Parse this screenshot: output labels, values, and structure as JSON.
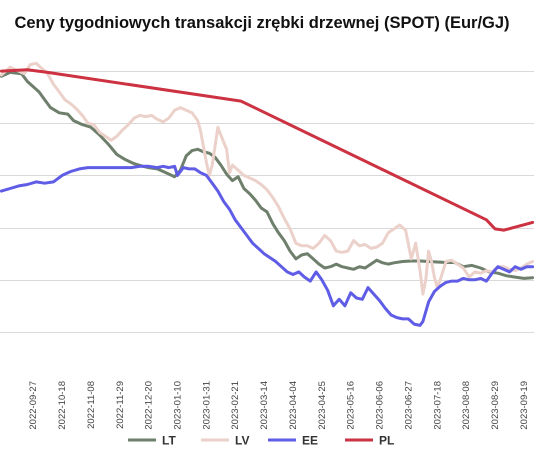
{
  "chart_data": {
    "type": "line",
    "title": "Ceny tygodniowych transakcji zrębki drzewnej (SPOT) (Eur/GJ)",
    "xlabel": "",
    "ylabel": "",
    "grid": true,
    "legend_position": "bottom",
    "x_tick_labels": [
      "2022-09-27",
      "2022-10-18",
      "2022-11-08",
      "2022-11-29",
      "2022-12-20",
      "2023-01-10",
      "2023-01-31",
      "2023-02-21",
      "2023-03-14",
      "2023-04-04",
      "2023-04-25",
      "2023-05-16",
      "2023-06-06",
      "2023-06-27",
      "2023-07-18",
      "2023-08-08",
      "2023-08-29",
      "2023-09-19"
    ],
    "series": [
      {
        "name": "LT",
        "color": "#6e7f6c",
        "points": [
          [
            -1.1,
            10.8
          ],
          [
            -0.8,
            10.95
          ],
          [
            -0.4,
            10.9
          ],
          [
            -0.2,
            10.6
          ],
          [
            0.2,
            10.2
          ],
          [
            0.4,
            9.9
          ],
          [
            0.6,
            9.6
          ],
          [
            0.9,
            9.4
          ],
          [
            1.2,
            9.35
          ],
          [
            1.4,
            9.1
          ],
          [
            1.7,
            8.95
          ],
          [
            2.0,
            8.85
          ],
          [
            2.3,
            8.55
          ],
          [
            2.6,
            8.2
          ],
          [
            2.9,
            7.8
          ],
          [
            3.2,
            7.6
          ],
          [
            3.5,
            7.45
          ],
          [
            3.8,
            7.35
          ],
          [
            4.0,
            7.3
          ],
          [
            4.3,
            7.25
          ],
          [
            4.6,
            7.1
          ],
          [
            4.9,
            6.95
          ],
          [
            5.1,
            7.2
          ],
          [
            5.3,
            7.75
          ],
          [
            5.5,
            7.95
          ],
          [
            5.7,
            8.0
          ],
          [
            5.9,
            7.9
          ],
          [
            6.1,
            7.85
          ],
          [
            6.3,
            7.7
          ],
          [
            6.5,
            7.4
          ],
          [
            6.7,
            7.05
          ],
          [
            6.9,
            6.8
          ],
          [
            7.1,
            6.95
          ],
          [
            7.3,
            6.5
          ],
          [
            7.5,
            6.3
          ],
          [
            7.7,
            6.05
          ],
          [
            7.9,
            5.75
          ],
          [
            8.1,
            5.6
          ],
          [
            8.3,
            5.15
          ],
          [
            8.5,
            4.8
          ],
          [
            8.7,
            4.5
          ],
          [
            8.9,
            4.1
          ],
          [
            9.1,
            3.8
          ],
          [
            9.3,
            3.95
          ],
          [
            9.5,
            4.0
          ],
          [
            9.7,
            3.8
          ],
          [
            9.9,
            3.6
          ],
          [
            10.1,
            3.45
          ],
          [
            10.3,
            3.5
          ],
          [
            10.5,
            3.6
          ],
          [
            10.7,
            3.5
          ],
          [
            10.9,
            3.45
          ],
          [
            11.1,
            3.4
          ],
          [
            11.3,
            3.5
          ],
          [
            11.5,
            3.45
          ],
          [
            11.7,
            3.6
          ],
          [
            11.9,
            3.75
          ],
          [
            12.1,
            3.65
          ],
          [
            12.3,
            3.6
          ],
          [
            12.5,
            3.65
          ],
          [
            12.8,
            3.7
          ],
          [
            13.1,
            3.72
          ],
          [
            13.4,
            3.72
          ],
          [
            13.7,
            3.7
          ],
          [
            14.0,
            3.68
          ],
          [
            14.3,
            3.66
          ],
          [
            14.6,
            3.66
          ],
          [
            14.9,
            3.5
          ],
          [
            15.2,
            3.55
          ],
          [
            15.5,
            3.45
          ],
          [
            15.8,
            3.3
          ],
          [
            16.1,
            3.25
          ],
          [
            16.4,
            3.15
          ],
          [
            16.7,
            3.1
          ],
          [
            17.0,
            3.05
          ],
          [
            17.3,
            3.08
          ]
        ]
      },
      {
        "name": "LV",
        "color": "#ebd1ca",
        "points": [
          [
            -1.1,
            10.85
          ],
          [
            -0.8,
            11.15
          ],
          [
            -0.5,
            11.0
          ],
          [
            -0.3,
            10.9
          ],
          [
            -0.1,
            11.25
          ],
          [
            0.1,
            11.3
          ],
          [
            0.3,
            11.1
          ],
          [
            0.5,
            10.9
          ],
          [
            0.7,
            10.5
          ],
          [
            0.9,
            10.2
          ],
          [
            1.1,
            9.9
          ],
          [
            1.3,
            9.75
          ],
          [
            1.5,
            9.55
          ],
          [
            1.7,
            9.3
          ],
          [
            1.9,
            9.0
          ],
          [
            2.1,
            8.95
          ],
          [
            2.3,
            8.65
          ],
          [
            2.5,
            8.5
          ],
          [
            2.7,
            8.35
          ],
          [
            2.9,
            8.5
          ],
          [
            3.1,
            8.75
          ],
          [
            3.3,
            8.95
          ],
          [
            3.5,
            9.2
          ],
          [
            3.7,
            9.3
          ],
          [
            3.9,
            9.25
          ],
          [
            4.1,
            9.3
          ],
          [
            4.3,
            9.15
          ],
          [
            4.5,
            9.05
          ],
          [
            4.7,
            9.2
          ],
          [
            4.9,
            9.5
          ],
          [
            5.1,
            9.6
          ],
          [
            5.3,
            9.5
          ],
          [
            5.5,
            9.4
          ],
          [
            5.7,
            9.1
          ],
          [
            5.8,
            8.7
          ],
          [
            5.9,
            8.1
          ],
          [
            6.0,
            7.5
          ],
          [
            6.1,
            7.0
          ],
          [
            6.2,
            7.4
          ],
          [
            6.3,
            8.1
          ],
          [
            6.4,
            8.85
          ],
          [
            6.5,
            8.55
          ],
          [
            6.7,
            8.0
          ],
          [
            6.8,
            7.1
          ],
          [
            6.9,
            7.4
          ],
          [
            7.1,
            7.2
          ],
          [
            7.3,
            7.0
          ],
          [
            7.5,
            6.9
          ],
          [
            7.7,
            6.8
          ],
          [
            7.9,
            6.65
          ],
          [
            8.1,
            6.45
          ],
          [
            8.3,
            6.15
          ],
          [
            8.5,
            5.8
          ],
          [
            8.7,
            5.35
          ],
          [
            8.9,
            4.95
          ],
          [
            9.1,
            4.4
          ],
          [
            9.3,
            4.3
          ],
          [
            9.5,
            4.3
          ],
          [
            9.7,
            4.2
          ],
          [
            9.9,
            4.4
          ],
          [
            10.1,
            4.7
          ],
          [
            10.3,
            4.5
          ],
          [
            10.5,
            4.1
          ],
          [
            10.7,
            4.05
          ],
          [
            10.9,
            4.1
          ],
          [
            11.1,
            4.5
          ],
          [
            11.3,
            4.3
          ],
          [
            11.5,
            4.35
          ],
          [
            11.7,
            4.2
          ],
          [
            11.9,
            4.25
          ],
          [
            12.1,
            4.4
          ],
          [
            12.3,
            4.8
          ],
          [
            12.5,
            4.95
          ],
          [
            12.7,
            5.1
          ],
          [
            12.9,
            4.9
          ],
          [
            13.1,
            3.8
          ],
          [
            13.25,
            4.4
          ],
          [
            13.4,
            3.35
          ],
          [
            13.5,
            2.45
          ],
          [
            13.6,
            3.0
          ],
          [
            13.7,
            4.1
          ],
          [
            13.8,
            3.7
          ],
          [
            13.9,
            3.1
          ],
          [
            14.0,
            2.7
          ],
          [
            14.1,
            3.0
          ],
          [
            14.3,
            3.7
          ],
          [
            14.5,
            3.75
          ],
          [
            14.7,
            3.6
          ],
          [
            14.9,
            3.45
          ],
          [
            15.1,
            3.1
          ],
          [
            15.3,
            3.3
          ],
          [
            15.5,
            3.25
          ],
          [
            15.7,
            3.35
          ],
          [
            15.9,
            3.3
          ],
          [
            16.1,
            3.5
          ],
          [
            16.3,
            3.5
          ],
          [
            16.5,
            3.4
          ],
          [
            16.7,
            3.35
          ],
          [
            16.9,
            3.45
          ],
          [
            17.1,
            3.6
          ],
          [
            17.3,
            3.7
          ]
        ]
      },
      {
        "name": "EE",
        "color": "#5f5ce6",
        "points": [
          [
            -1.1,
            6.4
          ],
          [
            -0.8,
            6.5
          ],
          [
            -0.5,
            6.6
          ],
          [
            -0.2,
            6.65
          ],
          [
            0.1,
            6.75
          ],
          [
            0.4,
            6.7
          ],
          [
            0.7,
            6.75
          ],
          [
            1.0,
            7.0
          ],
          [
            1.3,
            7.15
          ],
          [
            1.6,
            7.25
          ],
          [
            1.9,
            7.3
          ],
          [
            2.2,
            7.3
          ],
          [
            2.5,
            7.3
          ],
          [
            2.8,
            7.3
          ],
          [
            3.1,
            7.3
          ],
          [
            3.4,
            7.3
          ],
          [
            3.7,
            7.35
          ],
          [
            4.0,
            7.35
          ],
          [
            4.3,
            7.3
          ],
          [
            4.5,
            7.35
          ],
          [
            4.7,
            7.3
          ],
          [
            4.9,
            7.35
          ],
          [
            5.0,
            7.0
          ],
          [
            5.2,
            7.3
          ],
          [
            5.4,
            7.25
          ],
          [
            5.6,
            7.25
          ],
          [
            5.8,
            7.1
          ],
          [
            6.0,
            7.0
          ],
          [
            6.2,
            6.7
          ],
          [
            6.4,
            6.4
          ],
          [
            6.6,
            6.0
          ],
          [
            6.8,
            5.7
          ],
          [
            7.0,
            5.3
          ],
          [
            7.2,
            5.0
          ],
          [
            7.4,
            4.7
          ],
          [
            7.6,
            4.4
          ],
          [
            7.8,
            4.2
          ],
          [
            8.0,
            4.0
          ],
          [
            8.2,
            3.85
          ],
          [
            8.4,
            3.7
          ],
          [
            8.6,
            3.5
          ],
          [
            8.8,
            3.3
          ],
          [
            9.0,
            3.2
          ],
          [
            9.2,
            3.3
          ],
          [
            9.4,
            3.1
          ],
          [
            9.6,
            2.95
          ],
          [
            9.8,
            3.3
          ],
          [
            10.0,
            3.0
          ],
          [
            10.2,
            2.6
          ],
          [
            10.4,
            2.0
          ],
          [
            10.6,
            2.25
          ],
          [
            10.8,
            2.0
          ],
          [
            11.0,
            2.5
          ],
          [
            11.2,
            2.3
          ],
          [
            11.4,
            2.25
          ],
          [
            11.6,
            2.7
          ],
          [
            11.8,
            2.45
          ],
          [
            12.0,
            2.2
          ],
          [
            12.2,
            1.9
          ],
          [
            12.4,
            1.65
          ],
          [
            12.6,
            1.55
          ],
          [
            12.8,
            1.5
          ],
          [
            13.0,
            1.5
          ],
          [
            13.2,
            1.3
          ],
          [
            13.4,
            1.25
          ],
          [
            13.5,
            1.4
          ],
          [
            13.7,
            2.15
          ],
          [
            13.9,
            2.55
          ],
          [
            14.1,
            2.75
          ],
          [
            14.3,
            2.9
          ],
          [
            14.5,
            2.95
          ],
          [
            14.7,
            2.95
          ],
          [
            14.9,
            3.05
          ],
          [
            15.1,
            3.0
          ],
          [
            15.3,
            3.0
          ],
          [
            15.5,
            3.05
          ],
          [
            15.7,
            2.95
          ],
          [
            15.9,
            3.25
          ],
          [
            16.1,
            3.5
          ],
          [
            16.3,
            3.4
          ],
          [
            16.5,
            3.3
          ],
          [
            16.7,
            3.5
          ],
          [
            16.9,
            3.4
          ],
          [
            17.1,
            3.5
          ],
          [
            17.3,
            3.5
          ]
        ]
      },
      {
        "name": "PL",
        "color": "#cc3241",
        "points": [
          [
            -1.1,
            11.0
          ],
          [
            -0.2,
            11.05
          ],
          [
            0.5,
            10.95
          ],
          [
            7.2,
            9.85
          ],
          [
            15.7,
            5.3
          ],
          [
            16.0,
            4.95
          ],
          [
            16.3,
            4.9
          ],
          [
            17.3,
            5.2
          ]
        ]
      }
    ],
    "x_range": [
      -1.15,
      17.35
    ],
    "y_range": [
      0,
      12
    ],
    "y_grid_values": [
      1,
      3,
      5,
      7,
      9,
      11
    ]
  }
}
